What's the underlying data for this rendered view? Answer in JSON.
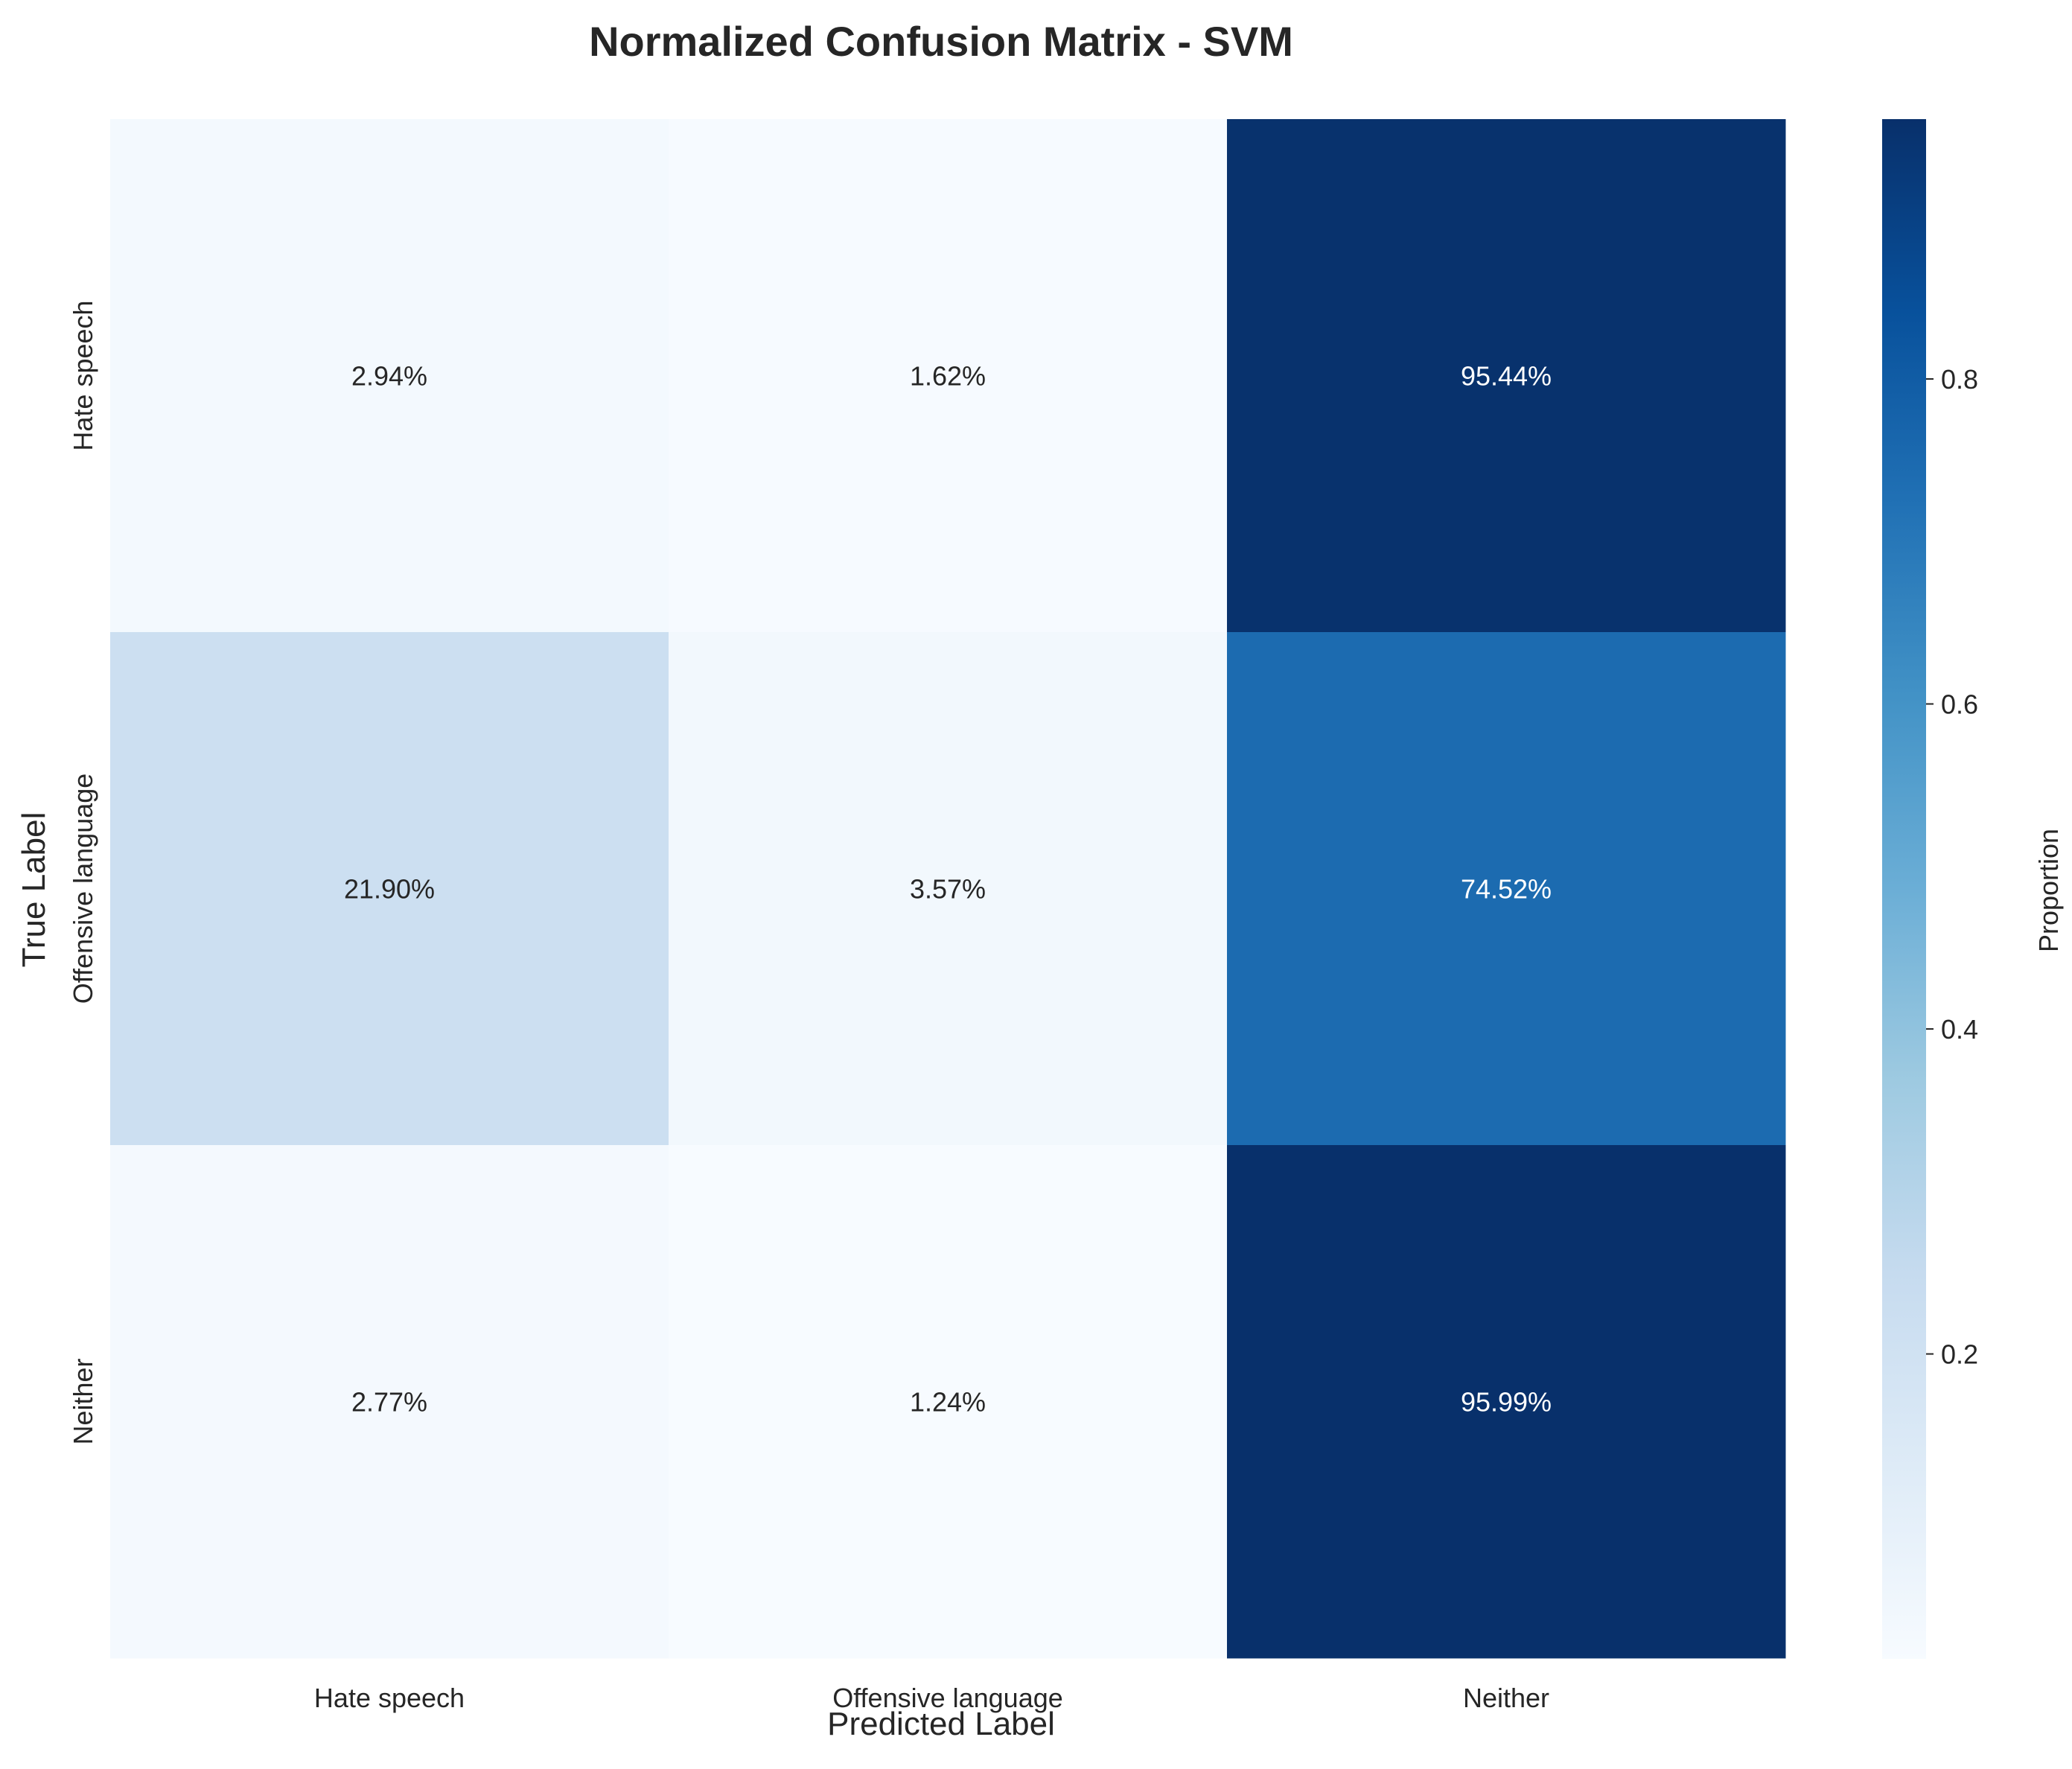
{
  "chart_data": {
    "type": "heatmap",
    "title": "Normalized Confusion Matrix - SVM",
    "xlabel": "Predicted Label",
    "ylabel": "True Label",
    "x_categories": [
      "Hate speech",
      "Offensive language",
      "Neither"
    ],
    "y_categories": [
      "Hate speech",
      "Offensive language",
      "Neither"
    ],
    "values": [
      [
        0.0294,
        0.0162,
        0.9544
      ],
      [
        0.219,
        0.0357,
        0.7452
      ],
      [
        0.0277,
        0.0124,
        0.9599
      ]
    ],
    "annotations": [
      [
        "2.94%",
        "1.62%",
        "95.44%"
      ],
      [
        "21.90%",
        "3.57%",
        "74.52%"
      ],
      [
        "2.77%",
        "1.24%",
        "95.99%"
      ]
    ],
    "colormap": "Blues",
    "colorbar": {
      "label": "Proportion",
      "ticks": [
        0.2,
        0.4,
        0.6,
        0.8
      ],
      "tick_labels": [
        "0.2",
        "0.4",
        "0.6",
        "0.8"
      ],
      "range": [
        0.0124,
        0.9599
      ]
    },
    "colors": {
      "scale": [
        "#f7fbff",
        "#deebf7",
        "#c6dbef",
        "#9ecae1",
        "#6baed6",
        "#4292c6",
        "#2171b5",
        "#08519c",
        "#08306b"
      ],
      "text_dark": "#262626",
      "text_light": "#ffffff"
    },
    "grid": false
  }
}
